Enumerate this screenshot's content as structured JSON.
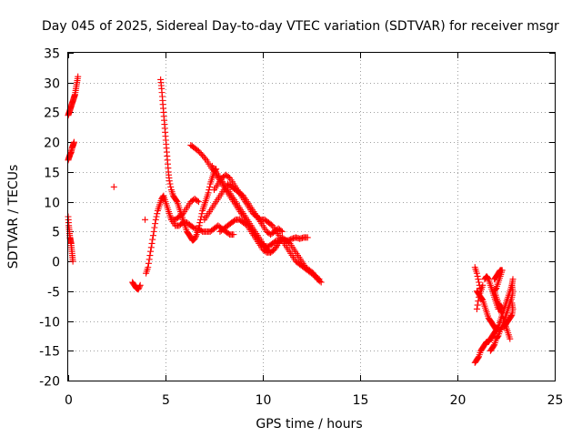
{
  "chart_data": {
    "type": "scatter",
    "title": "Day 045 of 2025, Sidereal Day-to-day VTEC variation (SDTVAR) for receiver msgr",
    "xlabel": "GPS time / hours",
    "ylabel": "SDTVAR / TECUs",
    "xlim": [
      0,
      25
    ],
    "ylim": [
      -20,
      35
    ],
    "xticks": [
      0,
      5,
      10,
      15,
      20,
      25
    ],
    "yticks": [
      -20,
      -15,
      -10,
      -5,
      0,
      5,
      10,
      15,
      20,
      25,
      30,
      35
    ],
    "grid": true,
    "marker": "+",
    "color": "#ff0000",
    "tracks": [
      [
        [
          0.0,
          17
        ],
        [
          0.05,
          17.5
        ],
        [
          0.1,
          18
        ],
        [
          0.15,
          18.3
        ],
        [
          0.2,
          19
        ],
        [
          0.25,
          19.5
        ],
        [
          0.3,
          20
        ]
      ],
      [
        [
          0.0,
          24.5
        ],
        [
          0.05,
          25
        ],
        [
          0.1,
          25.5
        ],
        [
          0.15,
          26
        ],
        [
          0.2,
          26.5
        ],
        [
          0.25,
          27
        ],
        [
          0.3,
          27.5
        ],
        [
          0.35,
          28
        ],
        [
          0.4,
          29
        ],
        [
          0.45,
          30
        ],
        [
          0.5,
          31
        ]
      ],
      [
        [
          0.0,
          7.5
        ],
        [
          0.03,
          6
        ],
        [
          0.06,
          5
        ],
        [
          0.09,
          4
        ],
        [
          0.12,
          3.5
        ],
        [
          0.15,
          3
        ],
        [
          0.18,
          2
        ],
        [
          0.21,
          1
        ],
        [
          0.24,
          0
        ]
      ],
      [
        [
          2.35,
          12.5
        ]
      ],
      [
        [
          3.3,
          -3.5
        ],
        [
          3.4,
          -4
        ],
        [
          3.5,
          -4.5
        ],
        [
          3.6,
          -4.7
        ],
        [
          3.7,
          -4
        ]
      ],
      [
        [
          3.95,
          7
        ]
      ],
      [
        [
          4.0,
          -2
        ],
        [
          4.1,
          -1
        ],
        [
          4.2,
          1
        ],
        [
          4.3,
          3
        ],
        [
          4.4,
          5
        ],
        [
          4.5,
          7
        ],
        [
          4.6,
          8.5
        ],
        [
          4.7,
          9.5
        ],
        [
          4.8,
          10.5
        ],
        [
          4.9,
          11
        ],
        [
          5.0,
          10
        ],
        [
          5.1,
          9
        ],
        [
          5.2,
          8
        ],
        [
          5.3,
          7
        ],
        [
          5.5,
          6
        ],
        [
          5.7,
          6
        ],
        [
          5.9,
          6.5
        ],
        [
          6.1,
          6.5
        ],
        [
          6.3,
          6
        ],
        [
          6.5,
          5.5
        ],
        [
          6.7,
          5.5
        ],
        [
          6.9,
          5
        ],
        [
          7.1,
          5
        ],
        [
          7.3,
          5
        ],
        [
          7.5,
          5.5
        ],
        [
          7.7,
          6
        ],
        [
          7.9,
          5.5
        ],
        [
          8.1,
          5
        ],
        [
          8.3,
          4.5
        ],
        [
          8.5,
          4.5
        ]
      ],
      [
        [
          4.75,
          30.5
        ],
        [
          4.8,
          29
        ],
        [
          4.85,
          27
        ],
        [
          4.9,
          25
        ],
        [
          4.95,
          23
        ],
        [
          5.0,
          21
        ],
        [
          5.05,
          19
        ],
        [
          5.1,
          17
        ],
        [
          5.15,
          15
        ],
        [
          5.2,
          13.5
        ],
        [
          5.3,
          12
        ],
        [
          5.4,
          11
        ],
        [
          5.5,
          10.5
        ],
        [
          5.6,
          10
        ],
        [
          5.7,
          9
        ],
        [
          5.8,
          8
        ],
        [
          5.9,
          7
        ],
        [
          6.0,
          6
        ],
        [
          6.1,
          5
        ],
        [
          6.2,
          4.5
        ],
        [
          6.3,
          4
        ],
        [
          6.4,
          3.5
        ],
        [
          6.5,
          3.8
        ],
        [
          6.6,
          4.5
        ],
        [
          6.7,
          5.5
        ],
        [
          6.8,
          7
        ],
        [
          6.9,
          8.5
        ],
        [
          7.0,
          9.5
        ],
        [
          7.1,
          10.5
        ],
        [
          7.2,
          11.5
        ],
        [
          7.3,
          13
        ],
        [
          7.4,
          14
        ],
        [
          7.5,
          15
        ],
        [
          7.6,
          15.5
        ]
      ],
      [
        [
          5.3,
          7
        ],
        [
          5.5,
          7
        ],
        [
          5.7,
          7.5
        ],
        [
          5.9,
          8
        ],
        [
          6.1,
          9
        ],
        [
          6.3,
          10
        ],
        [
          6.5,
          10.5
        ],
        [
          6.7,
          10
        ]
      ],
      [
        [
          6.3,
          19.5
        ],
        [
          6.5,
          19
        ],
        [
          6.7,
          18.5
        ],
        [
          6.9,
          17.8
        ],
        [
          7.1,
          17
        ],
        [
          7.3,
          16
        ],
        [
          7.5,
          15
        ],
        [
          7.7,
          14
        ],
        [
          7.9,
          13
        ],
        [
          8.1,
          12
        ],
        [
          8.3,
          11
        ],
        [
          8.5,
          10
        ],
        [
          8.7,
          9
        ],
        [
          8.9,
          8
        ],
        [
          9.1,
          7
        ],
        [
          9.3,
          6
        ],
        [
          9.5,
          5
        ],
        [
          9.7,
          4
        ],
        [
          9.9,
          3
        ],
        [
          10.1,
          2.5
        ],
        [
          10.3,
          2.5
        ],
        [
          10.5,
          3
        ],
        [
          10.7,
          3.5
        ],
        [
          10.9,
          3.5
        ],
        [
          11.1,
          3.5
        ],
        [
          11.3,
          3.5
        ],
        [
          11.5,
          3.8
        ],
        [
          11.7,
          4
        ],
        [
          11.9,
          3.8
        ],
        [
          12.1,
          4
        ],
        [
          12.3,
          4
        ]
      ],
      [
        [
          7.4,
          16
        ],
        [
          7.6,
          15
        ],
        [
          7.8,
          14
        ],
        [
          8.0,
          13
        ],
        [
          8.2,
          12
        ],
        [
          8.4,
          11
        ],
        [
          8.6,
          10
        ],
        [
          8.8,
          9
        ],
        [
          9.0,
          8
        ],
        [
          9.2,
          7
        ],
        [
          9.4,
          6
        ],
        [
          9.6,
          5
        ],
        [
          9.8,
          4
        ],
        [
          10.0,
          3
        ],
        [
          10.2,
          2
        ],
        [
          10.4,
          1.5
        ],
        [
          10.6,
          2
        ],
        [
          10.8,
          3
        ],
        [
          11.0,
          4
        ],
        [
          11.2,
          3.5
        ],
        [
          11.4,
          3
        ],
        [
          11.6,
          2
        ],
        [
          11.8,
          1
        ],
        [
          12.0,
          0
        ],
        [
          12.2,
          -1
        ],
        [
          12.4,
          -1.5
        ],
        [
          12.6,
          -2
        ],
        [
          12.8,
          -3
        ],
        [
          13.0,
          -3.5
        ]
      ],
      [
        [
          7.5,
          12
        ],
        [
          7.7,
          13
        ],
        [
          7.9,
          14
        ],
        [
          8.1,
          14.5
        ],
        [
          8.3,
          14
        ],
        [
          8.5,
          13
        ],
        [
          8.7,
          12
        ],
        [
          8.9,
          11
        ],
        [
          9.1,
          10
        ],
        [
          9.3,
          9
        ],
        [
          9.5,
          8
        ],
        [
          9.7,
          7.5
        ],
        [
          9.9,
          7
        ],
        [
          10.1,
          7
        ],
        [
          10.3,
          6.5
        ],
        [
          10.5,
          6
        ],
        [
          10.7,
          5
        ],
        [
          10.9,
          4
        ],
        [
          11.1,
          3
        ],
        [
          11.3,
          2
        ],
        [
          11.5,
          1
        ],
        [
          11.7,
          0
        ],
        [
          11.9,
          -0.5
        ],
        [
          12.1,
          -1
        ],
        [
          12.3,
          -1.5
        ],
        [
          12.5,
          -2
        ],
        [
          12.7,
          -2.5
        ],
        [
          12.9,
          -3
        ]
      ],
      [
        [
          7.8,
          5
        ],
        [
          8.0,
          5.5
        ],
        [
          8.2,
          6
        ],
        [
          8.4,
          6.5
        ],
        [
          8.6,
          7
        ],
        [
          8.8,
          7
        ],
        [
          9.0,
          6.5
        ],
        [
          9.2,
          6
        ],
        [
          9.4,
          5
        ],
        [
          9.6,
          4
        ],
        [
          9.8,
          3
        ],
        [
          10.0,
          2
        ],
        [
          10.2,
          1.5
        ],
        [
          10.4,
          1.5
        ],
        [
          10.6,
          2
        ],
        [
          10.8,
          3
        ]
      ],
      [
        [
          7.0,
          7
        ],
        [
          7.2,
          8
        ],
        [
          7.4,
          9
        ],
        [
          7.6,
          10
        ],
        [
          7.8,
          11
        ],
        [
          8.0,
          12
        ],
        [
          8.2,
          13
        ],
        [
          8.4,
          12.5
        ],
        [
          8.6,
          12
        ],
        [
          8.8,
          11.5
        ],
        [
          9.0,
          11
        ],
        [
          9.2,
          10
        ],
        [
          9.4,
          9
        ],
        [
          9.6,
          8
        ],
        [
          9.8,
          7
        ],
        [
          10.0,
          6
        ],
        [
          10.2,
          5
        ],
        [
          10.4,
          4.5
        ],
        [
          10.6,
          5
        ],
        [
          10.8,
          5.5
        ],
        [
          11.0,
          5
        ]
      ],
      [
        [
          20.9,
          -1
        ],
        [
          21.0,
          -2
        ],
        [
          21.1,
          -3.5
        ],
        [
          21.2,
          -5
        ],
        [
          21.3,
          -4
        ],
        [
          21.1,
          -6
        ],
        [
          21.0,
          -8
        ]
      ],
      [
        [
          21.0,
          -5
        ],
        [
          21.1,
          -5.5
        ],
        [
          21.2,
          -6
        ],
        [
          21.3,
          -6.5
        ],
        [
          21.4,
          -7.5
        ],
        [
          21.5,
          -8.5
        ],
        [
          21.6,
          -9.5
        ],
        [
          21.7,
          -10
        ],
        [
          21.8,
          -10.5
        ],
        [
          21.9,
          -11
        ],
        [
          22.0,
          -11.5
        ]
      ],
      [
        [
          21.4,
          -3
        ],
        [
          21.5,
          -2.5
        ],
        [
          21.6,
          -3
        ],
        [
          21.7,
          -4
        ],
        [
          21.8,
          -5
        ],
        [
          21.9,
          -6
        ],
        [
          22.0,
          -7
        ],
        [
          22.1,
          -8
        ],
        [
          22.2,
          -8
        ],
        [
          22.3,
          -9
        ],
        [
          22.4,
          -10
        ],
        [
          22.5,
          -11
        ],
        [
          22.6,
          -12
        ],
        [
          22.7,
          -13
        ]
      ],
      [
        [
          20.9,
          -17
        ],
        [
          21.0,
          -16.5
        ],
        [
          21.1,
          -16
        ],
        [
          21.2,
          -15
        ],
        [
          21.3,
          -14.5
        ],
        [
          21.4,
          -14
        ],
        [
          21.5,
          -13.5
        ],
        [
          21.6,
          -13.5
        ],
        [
          21.7,
          -13
        ],
        [
          21.8,
          -12.5
        ],
        [
          21.9,
          -12
        ],
        [
          22.0,
          -11.5
        ],
        [
          22.1,
          -11
        ],
        [
          22.2,
          -10
        ],
        [
          22.3,
          -9
        ],
        [
          22.4,
          -8
        ],
        [
          22.5,
          -7
        ],
        [
          22.6,
          -6
        ],
        [
          22.7,
          -5
        ],
        [
          22.8,
          -4
        ],
        [
          22.85,
          -3
        ]
      ],
      [
        [
          21.7,
          -15
        ],
        [
          21.8,
          -14.5
        ],
        [
          21.9,
          -14
        ],
        [
          22.0,
          -13
        ],
        [
          22.1,
          -12.5
        ],
        [
          22.2,
          -11.5
        ],
        [
          22.3,
          -11
        ],
        [
          22.4,
          -10
        ],
        [
          22.5,
          -9
        ],
        [
          22.6,
          -8
        ],
        [
          22.7,
          -7
        ],
        [
          22.8,
          -6
        ],
        [
          22.85,
          -5
        ],
        [
          22.8,
          -4
        ]
      ],
      [
        [
          21.9,
          -3
        ],
        [
          22.0,
          -2.5
        ],
        [
          22.1,
          -2
        ],
        [
          22.2,
          -1.5
        ],
        [
          22.3,
          -1.5
        ],
        [
          22.2,
          -2.5
        ],
        [
          22.1,
          -3.5
        ],
        [
          22.0,
          -4.5
        ],
        [
          21.9,
          -5
        ],
        [
          22.0,
          -6
        ],
        [
          22.1,
          -7
        ],
        [
          22.2,
          -7.5
        ],
        [
          22.3,
          -8
        ]
      ],
      [
        [
          22.4,
          -11
        ],
        [
          22.5,
          -10.5
        ],
        [
          22.6,
          -10
        ],
        [
          22.7,
          -9.5
        ],
        [
          22.8,
          -9
        ],
        [
          22.85,
          -8
        ],
        [
          22.8,
          -7
        ]
      ]
    ]
  }
}
